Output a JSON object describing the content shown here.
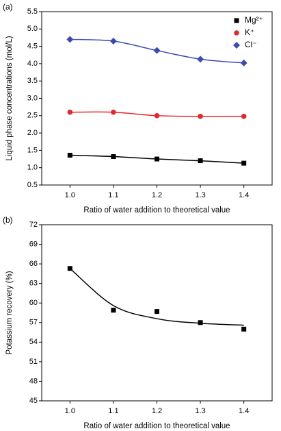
{
  "chart_data": [
    {
      "type": "scatter",
      "panel": "(a)",
      "y_label": "Liquid phase concentrations (mol/L)",
      "x_label": "Ratio of water addition to theoretical value",
      "x": [
        1.0,
        1.1,
        1.2,
        1.3,
        1.4
      ],
      "xlim": [
        0.935,
        1.465
      ],
      "xticks": [
        {
          "value": 1.0,
          "label": "1.0"
        },
        1.1,
        1.2,
        1.3,
        1.4
      ],
      "ylim": [
        0.5,
        5.5
      ],
      "yticks": [
        0.5,
        {
          "value": 1.0,
          "label": "1.0"
        },
        1.5,
        {
          "value": 2.0,
          "label": "2.0"
        },
        2.5,
        {
          "value": 3.0,
          "label": "3.0"
        },
        3.5,
        {
          "value": 4.0,
          "label": "4.0"
        },
        4.5,
        {
          "value": 5.0,
          "label": "5.0"
        },
        5.5
      ],
      "series": [
        {
          "name": "Mg²⁺",
          "color": "#000000",
          "marker": "square",
          "values": [
            1.36,
            1.32,
            1.25,
            1.2,
            1.13
          ]
        },
        {
          "name": "K⁺",
          "color": "#e8262a",
          "marker": "circle",
          "values": [
            2.6,
            2.6,
            2.5,
            2.48,
            2.48
          ]
        },
        {
          "name": "Cl⁻",
          "color": "#3a4bb5",
          "marker": "diamond",
          "values": [
            4.7,
            4.65,
            4.38,
            4.13,
            4.02
          ]
        }
      ],
      "legend": "upper right"
    },
    {
      "type": "scatter",
      "panel": "(b)",
      "y_label": "Potassium recovery (%)",
      "x_label": "Ratio of water addition to theoretical value",
      "x": [
        1.0,
        1.1,
        1.2,
        1.3,
        1.4
      ],
      "xlim": [
        0.935,
        1.465
      ],
      "xticks": [
        {
          "value": 1.0,
          "label": "1.0"
        },
        1.1,
        1.2,
        1.3,
        1.4
      ],
      "ylim": [
        45,
        72
      ],
      "yticks": [
        45,
        48,
        51,
        54,
        57,
        60,
        63,
        66,
        69,
        72
      ],
      "series": [
        {
          "color": "#000000",
          "marker": "square",
          "values": [
            65.3,
            58.9,
            58.7,
            57.0,
            56.0
          ]
        },
        {
          "color": "#000000",
          "marker": "none",
          "values": [
            65.3,
            59.6,
            57.6,
            56.9,
            56.6
          ]
        }
      ]
    }
  ]
}
